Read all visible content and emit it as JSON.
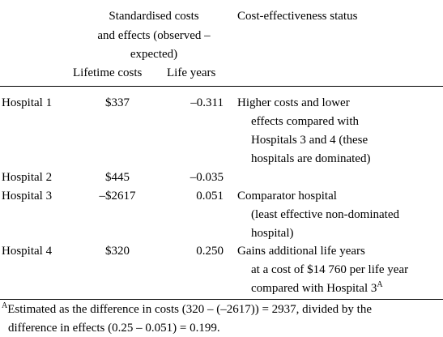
{
  "header": {
    "group_line1": "Standardised costs",
    "group_line2": "and effects (observed –",
    "group_line3": "expected)",
    "col_costs": "Lifetime costs",
    "col_life": "Life years",
    "col_status": "Cost-effectiveness status"
  },
  "rows": [
    {
      "label": "Hospital 1",
      "cost": "$337",
      "life": "–0.311",
      "status": [
        "Higher costs and lower",
        "effects compared with",
        "Hospitals 3 and 4 (these",
        "hospitals are dominated)"
      ]
    },
    {
      "label": "Hospital 2",
      "cost": "$445",
      "life": "–0.035",
      "status": []
    },
    {
      "label": "Hospital 3",
      "cost": "–$2617",
      "life": "0.051",
      "status": [
        "Comparator hospital",
        "(least effective non-dominated",
        "hospital)"
      ]
    },
    {
      "label": "Hospital 4",
      "cost": "$320",
      "life": "0.250",
      "status": [
        "Gains additional life years",
        "at a cost of $14 760 per life year",
        "compared with Hospital 3"
      ],
      "status_note_marker": "A"
    }
  ],
  "footnote": {
    "marker": "A",
    "line1": "Estimated as the difference in costs (320 – (–2617)) = 2937, divided by the",
    "line2": "difference in effects (0.25 – 0.051) = 0.199."
  }
}
